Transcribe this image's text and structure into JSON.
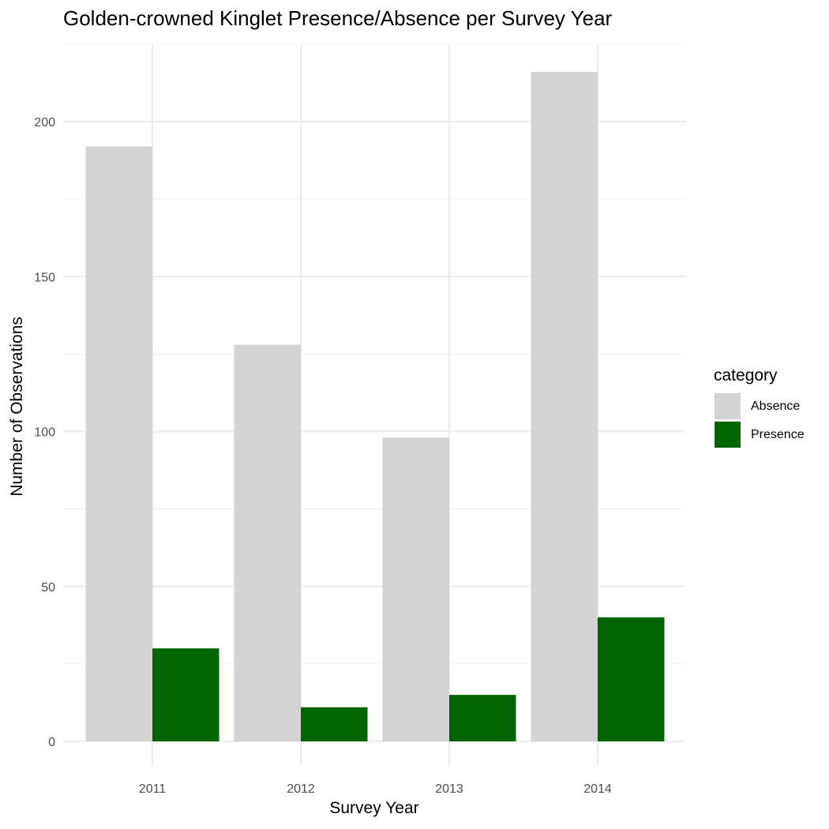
{
  "chart_data": {
    "type": "bar",
    "title": "Golden-crowned Kinglet Presence/Absence per Survey Year",
    "xlabel": "Survey Year",
    "ylabel": "Number of Observations",
    "categories": [
      "2011",
      "2012",
      "2013",
      "2014"
    ],
    "series": [
      {
        "name": "Absence",
        "color": "#d3d3d3",
        "values": [
          192,
          128,
          98,
          216
        ]
      },
      {
        "name": "Presence",
        "color": "#006400",
        "values": [
          30,
          11,
          15,
          40
        ]
      }
    ],
    "ylim": [
      0,
      225
    ],
    "yticks": [
      0,
      50,
      100,
      150,
      200
    ],
    "grid": true,
    "legend": {
      "title": "category",
      "position": "right"
    }
  }
}
